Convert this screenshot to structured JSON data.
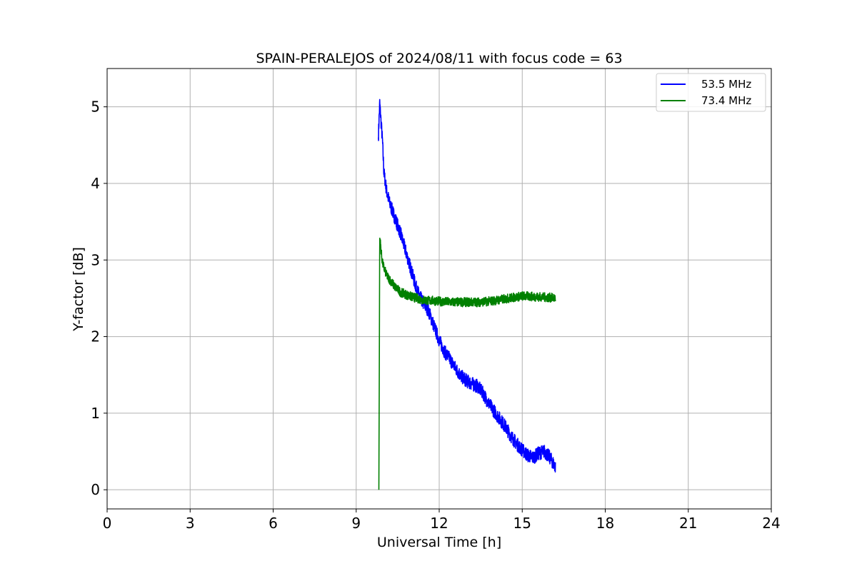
{
  "chart_data": {
    "type": "line",
    "title": "SPAIN-PERALEJOS of 2024/08/11 with focus code = 63",
    "xlabel": "Universal Time [h]",
    "ylabel": "Y-factor [dB]",
    "xlim": [
      0,
      24
    ],
    "ylim": [
      -0.25,
      5.5
    ],
    "xticks": [
      0,
      3,
      6,
      9,
      12,
      15,
      18,
      21,
      24
    ],
    "yticks": [
      0,
      1,
      2,
      3,
      4,
      5
    ],
    "grid": true,
    "legend_position": "top-right",
    "series": [
      {
        "name": "53.5 MHz",
        "color": "#0000ff",
        "noise": 0.09,
        "x": [
          9.8,
          9.85,
          9.9,
          9.95,
          10.0,
          10.1,
          10.2,
          10.4,
          10.6,
          10.8,
          11.0,
          11.2,
          11.4,
          11.6,
          11.8,
          12.0,
          12.2,
          12.4,
          12.6,
          12.8,
          13.0,
          13.2,
          13.4,
          13.6,
          13.8,
          14.0,
          14.2,
          14.4,
          14.6,
          14.8,
          15.0,
          15.2,
          15.4,
          15.6,
          15.8,
          16.0,
          16.2
        ],
        "y": [
          4.6,
          5.05,
          4.8,
          4.55,
          4.15,
          3.9,
          3.75,
          3.55,
          3.35,
          3.1,
          2.85,
          2.6,
          2.45,
          2.35,
          2.15,
          1.95,
          1.8,
          1.7,
          1.58,
          1.48,
          1.42,
          1.38,
          1.35,
          1.25,
          1.12,
          1.02,
          0.92,
          0.82,
          0.7,
          0.6,
          0.52,
          0.45,
          0.42,
          0.48,
          0.5,
          0.42,
          0.3
        ]
      },
      {
        "name": "73.4 MHz",
        "color": "#008000",
        "noise": 0.06,
        "x": [
          9.82,
          9.85,
          9.88,
          9.92,
          9.96,
          10.0,
          10.1,
          10.2,
          10.4,
          10.6,
          10.8,
          11.0,
          11.2,
          11.4,
          11.6,
          11.8,
          12.0,
          12.5,
          13.0,
          13.5,
          14.0,
          14.5,
          15.0,
          15.5,
          16.0,
          16.2
        ],
        "y": [
          0.0,
          3.3,
          3.2,
          3.05,
          2.95,
          2.9,
          2.8,
          2.75,
          2.65,
          2.58,
          2.55,
          2.52,
          2.5,
          2.48,
          2.47,
          2.47,
          2.46,
          2.45,
          2.45,
          2.45,
          2.47,
          2.5,
          2.53,
          2.52,
          2.51,
          2.5
        ]
      }
    ]
  }
}
